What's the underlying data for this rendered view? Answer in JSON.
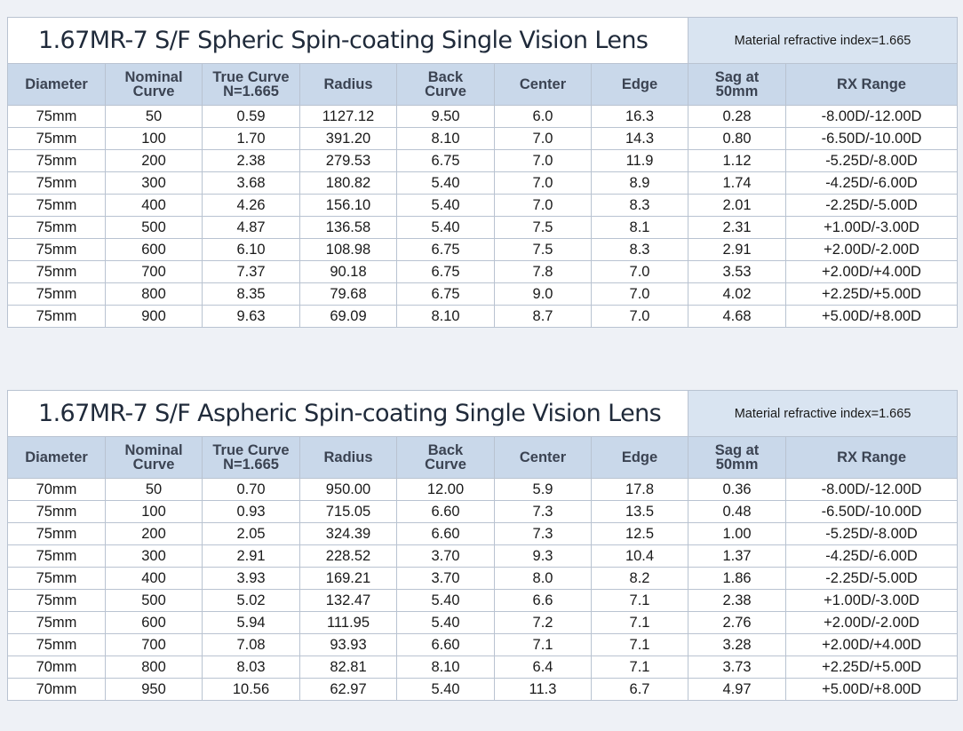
{
  "tables": [
    {
      "title": "1.67MR-7 S/F Spheric Spin-coating Single Vision Lens",
      "index_note": "Material refractive index=1.665",
      "headers": [
        [
          "Diameter"
        ],
        [
          "Nominal",
          "Curve"
        ],
        [
          "True Curve",
          "N=1.665"
        ],
        [
          "Radius"
        ],
        [
          "Back",
          "Curve"
        ],
        [
          "Center"
        ],
        [
          "Edge"
        ],
        [
          "Sag at",
          "50mm"
        ],
        [
          "RX Range"
        ]
      ],
      "rows": [
        [
          "75mm",
          "50",
          "0.59",
          "1127.12",
          "9.50",
          "6.0",
          "16.3",
          "0.28",
          "-8.00D/-12.00D"
        ],
        [
          "75mm",
          "100",
          "1.70",
          "391.20",
          "8.10",
          "7.0",
          "14.3",
          "0.80",
          "-6.50D/-10.00D"
        ],
        [
          "75mm",
          "200",
          "2.38",
          "279.53",
          "6.75",
          "7.0",
          "11.9",
          "1.12",
          "-5.25D/-8.00D"
        ],
        [
          "75mm",
          "300",
          "3.68",
          "180.82",
          "5.40",
          "7.0",
          "8.9",
          "1.74",
          "-4.25D/-6.00D"
        ],
        [
          "75mm",
          "400",
          "4.26",
          "156.10",
          "5.40",
          "7.0",
          "8.3",
          "2.01",
          "-2.25D/-5.00D"
        ],
        [
          "75mm",
          "500",
          "4.87",
          "136.58",
          "5.40",
          "7.5",
          "8.1",
          "2.31",
          "+1.00D/-3.00D"
        ],
        [
          "75mm",
          "600",
          "6.10",
          "108.98",
          "6.75",
          "7.5",
          "8.3",
          "2.91",
          "+2.00D/-2.00D"
        ],
        [
          "75mm",
          "700",
          "7.37",
          "90.18",
          "6.75",
          "7.8",
          "7.0",
          "3.53",
          "+2.00D/+4.00D"
        ],
        [
          "75mm",
          "800",
          "8.35",
          "79.68",
          "6.75",
          "9.0",
          "7.0",
          "4.02",
          "+2.25D/+5.00D"
        ],
        [
          "75mm",
          "900",
          "9.63",
          "69.09",
          "8.10",
          "8.7",
          "7.0",
          "4.68",
          "+5.00D/+8.00D"
        ]
      ]
    },
    {
      "title": "1.67MR-7 S/F Aspheric Spin-coating Single Vision Lens",
      "index_note": "Material refractive index=1.665",
      "headers": [
        [
          "Diameter"
        ],
        [
          "Nominal",
          "Curve"
        ],
        [
          "True Curve",
          "N=1.665"
        ],
        [
          "Radius"
        ],
        [
          "Back",
          "Curve"
        ],
        [
          "Center"
        ],
        [
          "Edge"
        ],
        [
          "Sag at",
          "50mm"
        ],
        [
          "RX Range"
        ]
      ],
      "rows": [
        [
          "70mm",
          "50",
          "0.70",
          "950.00",
          "12.00",
          "5.9",
          "17.8",
          "0.36",
          "-8.00D/-12.00D"
        ],
        [
          "75mm",
          "100",
          "0.93",
          "715.05",
          "6.60",
          "7.3",
          "13.5",
          "0.48",
          "-6.50D/-10.00D"
        ],
        [
          "75mm",
          "200",
          "2.05",
          "324.39",
          "6.60",
          "7.3",
          "12.5",
          "1.00",
          "-5.25D/-8.00D"
        ],
        [
          "75mm",
          "300",
          "2.91",
          "228.52",
          "3.70",
          "9.3",
          "10.4",
          "1.37",
          "-4.25D/-6.00D"
        ],
        [
          "75mm",
          "400",
          "3.93",
          "169.21",
          "3.70",
          "8.0",
          "8.2",
          "1.86",
          "-2.25D/-5.00D"
        ],
        [
          "75mm",
          "500",
          "5.02",
          "132.47",
          "5.40",
          "6.6",
          "7.1",
          "2.38",
          "+1.00D/-3.00D"
        ],
        [
          "75mm",
          "600",
          "5.94",
          "111.95",
          "5.40",
          "7.2",
          "7.1",
          "2.76",
          "+2.00D/-2.00D"
        ],
        [
          "75mm",
          "700",
          "7.08",
          "93.93",
          "6.60",
          "7.1",
          "7.1",
          "3.28",
          "+2.00D/+4.00D"
        ],
        [
          "70mm",
          "800",
          "8.03",
          "82.81",
          "8.10",
          "6.4",
          "7.1",
          "3.73",
          "+2.25D/+5.00D"
        ],
        [
          "70mm",
          "950",
          "10.56",
          "62.97",
          "5.40",
          "11.3",
          "6.7",
          "4.97",
          "+5.00D/+8.00D"
        ]
      ]
    }
  ]
}
